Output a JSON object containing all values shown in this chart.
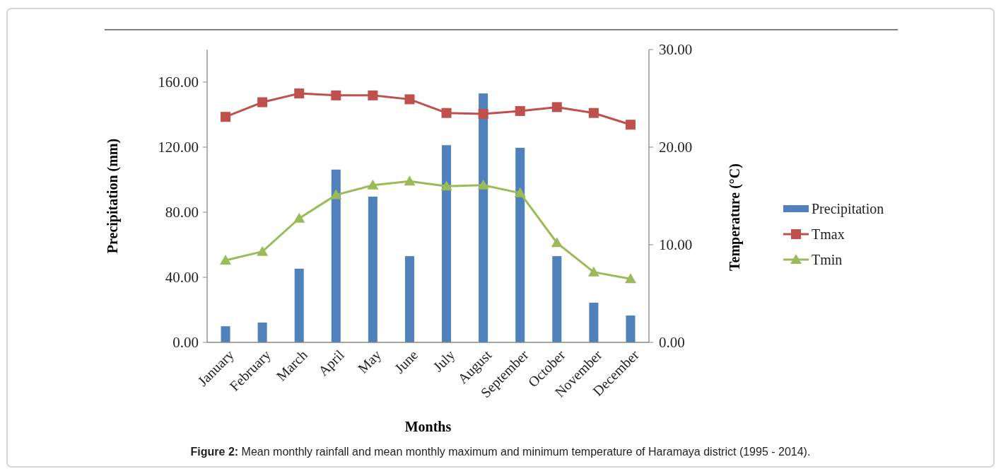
{
  "chart_data": {
    "type": "bar",
    "xlabel": "Months",
    "ylabel": "Precipitation (mm)",
    "y2label": "Temperature (°C)",
    "categories": [
      "January",
      "February",
      "March",
      "April",
      "May",
      "June",
      "July",
      "August",
      "September",
      "October",
      "November",
      "December"
    ],
    "series": [
      {
        "name": "Precipitation",
        "color": "#4f81bd",
        "values": [
          9.9,
          12.2,
          45.3,
          106.2,
          89.6,
          53.0,
          121.2,
          153.0,
          119.6,
          53.0,
          24.4,
          16.5
        ]
      },
      {
        "name": "Tmax",
        "type": "line",
        "axis": "y2",
        "marker": "square",
        "color": "#c0504d",
        "values": [
          23.1,
          24.6,
          25.5,
          25.3,
          25.3,
          24.9,
          23.5,
          23.4,
          23.7,
          24.1,
          23.5,
          22.3
        ]
      },
      {
        "name": "Tmin",
        "type": "line",
        "axis": "y2",
        "marker": "triangle",
        "color": "#9bbb59",
        "values": [
          8.4,
          9.3,
          12.7,
          15.1,
          16.1,
          16.5,
          16.0,
          16.1,
          15.3,
          10.2,
          7.2,
          6.5
        ]
      }
    ],
    "ylim": [
      0,
      180
    ],
    "yticks": [
      {
        "value": 0,
        "label": "0.00"
      },
      {
        "value": 40,
        "label": "40.00"
      },
      {
        "value": 80,
        "label": "80.00"
      },
      {
        "value": 120,
        "label": "120.00"
      },
      {
        "value": 160,
        "label": "160.00"
      }
    ],
    "y2lim": [
      0,
      30
    ],
    "y2ticks": [
      {
        "value": 0,
        "label": "0.00"
      },
      {
        "value": 10,
        "label": "10.00"
      },
      {
        "value": 20,
        "label": "20.00"
      },
      {
        "value": 30,
        "label": "30.00"
      }
    ],
    "grid": false,
    "legend": "right",
    "annotations": [
      "Figure 2: Mean monthly rainfall and mean monthly maximum and minimum temperature of Haramaya district (1995 - 2014)."
    ]
  }
}
